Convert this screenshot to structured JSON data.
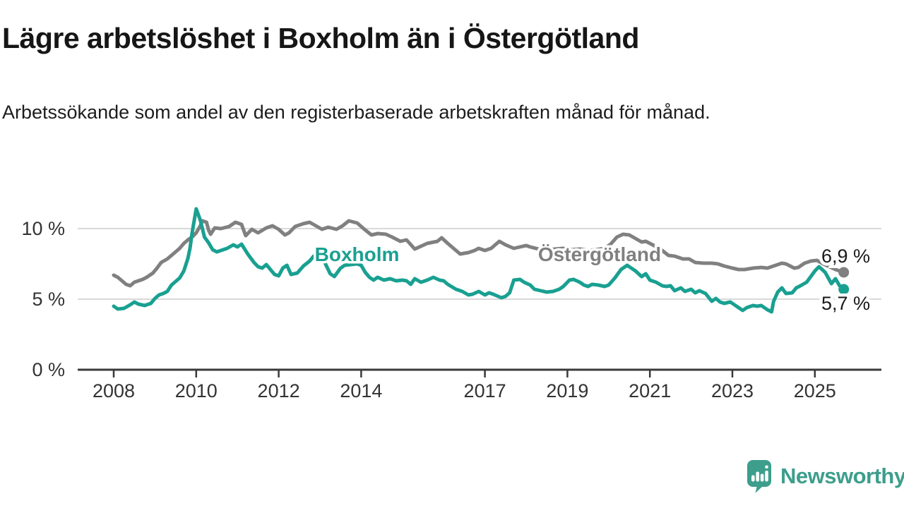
{
  "header": {
    "title": "Lägre arbetslöshet i Boxholm än i Östergötland",
    "subtitle": "Arbetssökande som andel av den registerbaserade arbetskraften månad för månad."
  },
  "footer": {
    "brand": "Newsworthy",
    "brand_color": "#3d9e8c",
    "logo_icon": "bar-chart-speech-bubble"
  },
  "chart_data": {
    "type": "line",
    "title": "Lägre arbetslöshet i Boxholm än i Östergötland",
    "xlabel": "",
    "ylabel": "",
    "grid": "horizontal",
    "legend_position": "inline-labels",
    "x_axis": {
      "ticks": [
        2008,
        2010,
        2012,
        2014,
        2017,
        2019,
        2021,
        2023,
        2025
      ],
      "range": [
        2007.1,
        2026.6
      ]
    },
    "y_axis": {
      "ticks": [
        {
          "value": 0,
          "label": "0 %"
        },
        {
          "value": 5,
          "label": "5 %"
        },
        {
          "value": 10,
          "label": "10 %"
        }
      ],
      "range": [
        0,
        12.3
      ]
    },
    "series": [
      {
        "name": "Östergötland",
        "color": "#808080",
        "end_label": "6,9 %",
        "end_label_position": "above",
        "label_anchor": {
          "year": 2019.78,
          "value": 8.15
        },
        "points": [
          [
            2008.0,
            6.7
          ],
          [
            2008.1,
            6.55
          ],
          [
            2008.2,
            6.3
          ],
          [
            2008.3,
            6.05
          ],
          [
            2008.4,
            5.95
          ],
          [
            2008.5,
            6.2
          ],
          [
            2008.6,
            6.3
          ],
          [
            2008.7,
            6.4
          ],
          [
            2008.8,
            6.55
          ],
          [
            2008.95,
            6.85
          ],
          [
            2009.05,
            7.2
          ],
          [
            2009.15,
            7.6
          ],
          [
            2009.3,
            7.85
          ],
          [
            2009.4,
            8.1
          ],
          [
            2009.5,
            8.35
          ],
          [
            2009.6,
            8.6
          ],
          [
            2009.7,
            8.95
          ],
          [
            2009.8,
            9.2
          ],
          [
            2009.9,
            9.4
          ],
          [
            2010.0,
            9.7
          ],
          [
            2010.1,
            10.2
          ],
          [
            2010.15,
            10.55
          ],
          [
            2010.25,
            10.45
          ],
          [
            2010.3,
            9.9
          ],
          [
            2010.35,
            9.6
          ],
          [
            2010.45,
            10.05
          ],
          [
            2010.6,
            10.0
          ],
          [
            2010.8,
            10.15
          ],
          [
            2010.95,
            10.45
          ],
          [
            2011.1,
            10.3
          ],
          [
            2011.2,
            9.5
          ],
          [
            2011.35,
            9.95
          ],
          [
            2011.5,
            9.7
          ],
          [
            2011.7,
            10.05
          ],
          [
            2011.85,
            10.2
          ],
          [
            2012.0,
            9.95
          ],
          [
            2012.15,
            9.55
          ],
          [
            2012.25,
            9.7
          ],
          [
            2012.4,
            10.15
          ],
          [
            2012.6,
            10.35
          ],
          [
            2012.75,
            10.45
          ],
          [
            2012.9,
            10.2
          ],
          [
            2013.05,
            9.95
          ],
          [
            2013.2,
            10.1
          ],
          [
            2013.4,
            9.95
          ],
          [
            2013.55,
            10.2
          ],
          [
            2013.7,
            10.55
          ],
          [
            2013.9,
            10.4
          ],
          [
            2014.1,
            9.9
          ],
          [
            2014.25,
            9.55
          ],
          [
            2014.4,
            9.65
          ],
          [
            2014.6,
            9.6
          ],
          [
            2014.75,
            9.4
          ],
          [
            2014.95,
            9.1
          ],
          [
            2015.1,
            9.2
          ],
          [
            2015.3,
            8.55
          ],
          [
            2015.6,
            8.95
          ],
          [
            2015.85,
            9.1
          ],
          [
            2015.95,
            9.35
          ],
          [
            2016.1,
            8.95
          ],
          [
            2016.3,
            8.45
          ],
          [
            2016.4,
            8.2
          ],
          [
            2016.6,
            8.3
          ],
          [
            2016.75,
            8.45
          ],
          [
            2016.85,
            8.6
          ],
          [
            2017.0,
            8.45
          ],
          [
            2017.15,
            8.6
          ],
          [
            2017.35,
            9.1
          ],
          [
            2017.5,
            8.85
          ],
          [
            2017.7,
            8.6
          ],
          [
            2017.85,
            8.7
          ],
          [
            2018.0,
            8.8
          ],
          [
            2018.1,
            8.7
          ],
          [
            2018.3,
            8.55
          ],
          [
            2018.5,
            8.5
          ],
          [
            2018.7,
            8.55
          ],
          [
            2018.9,
            8.6
          ],
          [
            2019.1,
            8.5
          ],
          [
            2019.3,
            8.55
          ],
          [
            2019.5,
            8.45
          ],
          [
            2019.7,
            8.5
          ],
          [
            2019.9,
            8.6
          ],
          [
            2020.05,
            8.9
          ],
          [
            2020.2,
            9.4
          ],
          [
            2020.35,
            9.6
          ],
          [
            2020.5,
            9.55
          ],
          [
            2020.65,
            9.3
          ],
          [
            2020.8,
            9.05
          ],
          [
            2020.9,
            9.1
          ],
          [
            2021.1,
            8.8
          ],
          [
            2021.3,
            8.45
          ],
          [
            2021.45,
            8.1
          ],
          [
            2021.6,
            8.05
          ],
          [
            2021.8,
            7.85
          ],
          [
            2021.95,
            7.85
          ],
          [
            2022.1,
            7.6
          ],
          [
            2022.3,
            7.55
          ],
          [
            2022.5,
            7.55
          ],
          [
            2022.65,
            7.5
          ],
          [
            2022.8,
            7.35
          ],
          [
            2023.0,
            7.2
          ],
          [
            2023.15,
            7.1
          ],
          [
            2023.3,
            7.1
          ],
          [
            2023.5,
            7.2
          ],
          [
            2023.7,
            7.25
          ],
          [
            2023.85,
            7.2
          ],
          [
            2024.0,
            7.35
          ],
          [
            2024.2,
            7.55
          ],
          [
            2024.3,
            7.5
          ],
          [
            2024.5,
            7.2
          ],
          [
            2024.6,
            7.25
          ],
          [
            2024.75,
            7.55
          ],
          [
            2024.9,
            7.7
          ],
          [
            2025.05,
            7.75
          ],
          [
            2025.2,
            7.5
          ],
          [
            2025.35,
            7.3
          ],
          [
            2025.5,
            7.1
          ],
          [
            2025.7,
            6.9
          ]
        ]
      },
      {
        "name": "Boxholm",
        "color": "#19a091",
        "end_label": "5,7 %",
        "end_label_position": "below",
        "label_anchor": {
          "year": 2013.9,
          "value": 8.15
        },
        "points": [
          [
            2008.0,
            4.5
          ],
          [
            2008.1,
            4.3
          ],
          [
            2008.25,
            4.35
          ],
          [
            2008.4,
            4.6
          ],
          [
            2008.5,
            4.8
          ],
          [
            2008.6,
            4.65
          ],
          [
            2008.75,
            4.55
          ],
          [
            2008.9,
            4.7
          ],
          [
            2009.0,
            5.05
          ],
          [
            2009.1,
            5.3
          ],
          [
            2009.2,
            5.4
          ],
          [
            2009.3,
            5.55
          ],
          [
            2009.4,
            6.0
          ],
          [
            2009.5,
            6.25
          ],
          [
            2009.6,
            6.5
          ],
          [
            2009.7,
            7.0
          ],
          [
            2009.8,
            7.9
          ],
          [
            2009.85,
            8.6
          ],
          [
            2009.9,
            9.7
          ],
          [
            2010.0,
            11.4
          ],
          [
            2010.1,
            10.6
          ],
          [
            2010.2,
            9.4
          ],
          [
            2010.3,
            9.0
          ],
          [
            2010.4,
            8.5
          ],
          [
            2010.5,
            8.35
          ],
          [
            2010.6,
            8.45
          ],
          [
            2010.75,
            8.6
          ],
          [
            2010.9,
            8.85
          ],
          [
            2011.0,
            8.7
          ],
          [
            2011.1,
            8.9
          ],
          [
            2011.25,
            8.2
          ],
          [
            2011.4,
            7.6
          ],
          [
            2011.5,
            7.3
          ],
          [
            2011.6,
            7.2
          ],
          [
            2011.7,
            7.45
          ],
          [
            2011.8,
            7.1
          ],
          [
            2011.9,
            6.75
          ],
          [
            2012.0,
            6.65
          ],
          [
            2012.1,
            7.2
          ],
          [
            2012.2,
            7.4
          ],
          [
            2012.3,
            6.75
          ],
          [
            2012.45,
            6.85
          ],
          [
            2012.6,
            7.35
          ],
          [
            2012.75,
            7.7
          ],
          [
            2012.85,
            8.05
          ],
          [
            2012.95,
            8.1
          ],
          [
            2013.1,
            7.7
          ],
          [
            2013.25,
            6.8
          ],
          [
            2013.35,
            6.6
          ],
          [
            2013.5,
            7.2
          ],
          [
            2013.6,
            7.4
          ],
          [
            2013.75,
            7.45
          ],
          [
            2013.9,
            7.5
          ],
          [
            2014.0,
            7.4
          ],
          [
            2014.1,
            6.9
          ],
          [
            2014.2,
            6.55
          ],
          [
            2014.3,
            6.35
          ],
          [
            2014.4,
            6.55
          ],
          [
            2014.55,
            6.35
          ],
          [
            2014.7,
            6.45
          ],
          [
            2014.85,
            6.3
          ],
          [
            2015.0,
            6.35
          ],
          [
            2015.1,
            6.3
          ],
          [
            2015.2,
            6.05
          ],
          [
            2015.3,
            6.45
          ],
          [
            2015.45,
            6.2
          ],
          [
            2015.6,
            6.35
          ],
          [
            2015.75,
            6.55
          ],
          [
            2015.9,
            6.35
          ],
          [
            2016.0,
            6.3
          ],
          [
            2016.1,
            6.05
          ],
          [
            2016.3,
            5.7
          ],
          [
            2016.45,
            5.55
          ],
          [
            2016.6,
            5.3
          ],
          [
            2016.7,
            5.35
          ],
          [
            2016.85,
            5.55
          ],
          [
            2017.0,
            5.3
          ],
          [
            2017.1,
            5.45
          ],
          [
            2017.2,
            5.35
          ],
          [
            2017.4,
            5.1
          ],
          [
            2017.5,
            5.2
          ],
          [
            2017.6,
            5.45
          ],
          [
            2017.7,
            6.35
          ],
          [
            2017.85,
            6.4
          ],
          [
            2017.95,
            6.2
          ],
          [
            2018.1,
            6.0
          ],
          [
            2018.2,
            5.7
          ],
          [
            2018.35,
            5.6
          ],
          [
            2018.5,
            5.5
          ],
          [
            2018.65,
            5.55
          ],
          [
            2018.8,
            5.7
          ],
          [
            2018.9,
            5.9
          ],
          [
            2019.05,
            6.35
          ],
          [
            2019.15,
            6.4
          ],
          [
            2019.3,
            6.2
          ],
          [
            2019.4,
            6.0
          ],
          [
            2019.5,
            5.9
          ],
          [
            2019.6,
            6.05
          ],
          [
            2019.75,
            6.0
          ],
          [
            2019.9,
            5.9
          ],
          [
            2020.0,
            6.0
          ],
          [
            2020.15,
            6.5
          ],
          [
            2020.3,
            7.1
          ],
          [
            2020.45,
            7.4
          ],
          [
            2020.55,
            7.2
          ],
          [
            2020.65,
            7.0
          ],
          [
            2020.8,
            6.6
          ],
          [
            2020.9,
            6.8
          ],
          [
            2021.0,
            6.35
          ],
          [
            2021.15,
            6.2
          ],
          [
            2021.3,
            5.95
          ],
          [
            2021.4,
            5.9
          ],
          [
            2021.5,
            5.95
          ],
          [
            2021.6,
            5.6
          ],
          [
            2021.75,
            5.8
          ],
          [
            2021.85,
            5.55
          ],
          [
            2022.0,
            5.7
          ],
          [
            2022.1,
            5.45
          ],
          [
            2022.2,
            5.6
          ],
          [
            2022.35,
            5.4
          ],
          [
            2022.5,
            4.85
          ],
          [
            2022.6,
            5.05
          ],
          [
            2022.7,
            4.8
          ],
          [
            2022.8,
            4.7
          ],
          [
            2022.95,
            4.8
          ],
          [
            2023.05,
            4.6
          ],
          [
            2023.15,
            4.4
          ],
          [
            2023.25,
            4.2
          ],
          [
            2023.35,
            4.4
          ],
          [
            2023.5,
            4.55
          ],
          [
            2023.6,
            4.5
          ],
          [
            2023.7,
            4.55
          ],
          [
            2023.85,
            4.25
          ],
          [
            2023.95,
            4.1
          ],
          [
            2024.0,
            4.85
          ],
          [
            2024.1,
            5.5
          ],
          [
            2024.2,
            5.8
          ],
          [
            2024.3,
            5.4
          ],
          [
            2024.45,
            5.45
          ],
          [
            2024.55,
            5.8
          ],
          [
            2024.65,
            5.95
          ],
          [
            2024.8,
            6.2
          ],
          [
            2024.9,
            6.6
          ],
          [
            2025.0,
            7.0
          ],
          [
            2025.1,
            7.3
          ],
          [
            2025.25,
            6.9
          ],
          [
            2025.4,
            6.1
          ],
          [
            2025.5,
            6.45
          ],
          [
            2025.6,
            5.95
          ],
          [
            2025.7,
            5.7
          ]
        ]
      }
    ]
  },
  "colors": {
    "background": "#ffffff",
    "gridline": "#d9d9d9",
    "axis": "#3a3a3a",
    "axis_text": "#333333",
    "title_text": "#161616",
    "boxholm": "#19a091",
    "ostergotland": "#808080"
  }
}
